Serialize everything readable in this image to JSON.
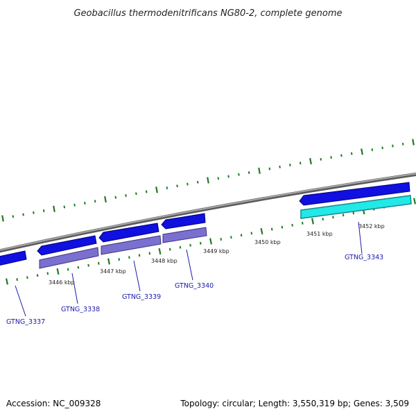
{
  "title": "Geobacillus thermodenitrificans NG80-2, complete genome",
  "footer": {
    "accession": "Accession: NC_009328",
    "summary": "Topology: circular; Length: 3,550,319 bp; Genes: 3,509"
  },
  "colors": {
    "backbone": "#8a8a8a",
    "ticks": "#1f7a1f",
    "forward_gene": "#1010e0",
    "product_violet": "#7a70d0",
    "product_cyan": "#22e8e8",
    "label": "#1a1aaa"
  },
  "kbp_labels": [
    "3446 kbp",
    "3447 kbp",
    "3448 kbp",
    "3449 kbp",
    "3450 kbp",
    "3451 kbp",
    "3452 kbp"
  ],
  "genes": [
    {
      "locus": "GTNG_3337"
    },
    {
      "locus": "GTNG_3338"
    },
    {
      "locus": "GTNG_3339"
    },
    {
      "locus": "GTNG_3340"
    },
    {
      "locus": "GTNG_3343"
    }
  ]
}
